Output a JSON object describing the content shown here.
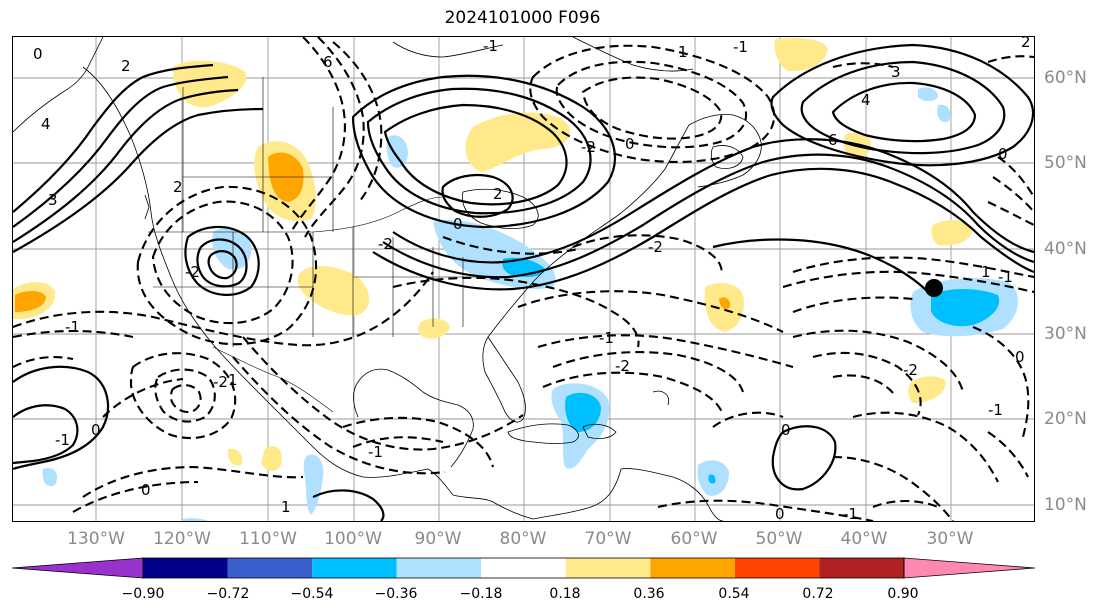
{
  "title": "2024101000 F096",
  "lon_labels": [
    "130°W",
    "120°W",
    "110°W",
    "100°W",
    "90°W",
    "80°W",
    "70°W",
    "60°W",
    "50°W",
    "40°W",
    "30°W"
  ],
  "lat_labels": [
    "60°N",
    "50°N",
    "40°N",
    "30°N",
    "20°N",
    "10°N"
  ],
  "colorbar": {
    "ticks": [
      "−0.90",
      "−0.72",
      "−0.54",
      "−0.36",
      "−0.18",
      "0.18",
      "0.36",
      "0.54",
      "0.72",
      "0.90"
    ],
    "colors": [
      "#9932cc",
      "#00008b",
      "#3a5fcd",
      "#00bfff",
      "#b0e0ff",
      "#ffffff",
      "#ffe98a",
      "#ffa500",
      "#ff4500",
      "#b22222",
      "#ff88b0"
    ]
  },
  "contour_labels": [
    "0",
    "2",
    "4",
    "6",
    "-1",
    "-2",
    "1",
    "3",
    "0",
    "-1",
    "2",
    "-2",
    "0",
    "-1",
    "-2",
    "1",
    "0",
    "-1",
    "-2",
    "2",
    "-2",
    "0",
    "1",
    "-1",
    "6",
    "4",
    "3",
    "2",
    "0",
    "-1",
    "-2",
    "1",
    "0",
    "-1",
    "-2",
    "0",
    "-1",
    "0",
    "-1"
  ],
  "marker": {
    "lon": -32,
    "lat": 35.5,
    "color": "#000000"
  }
}
